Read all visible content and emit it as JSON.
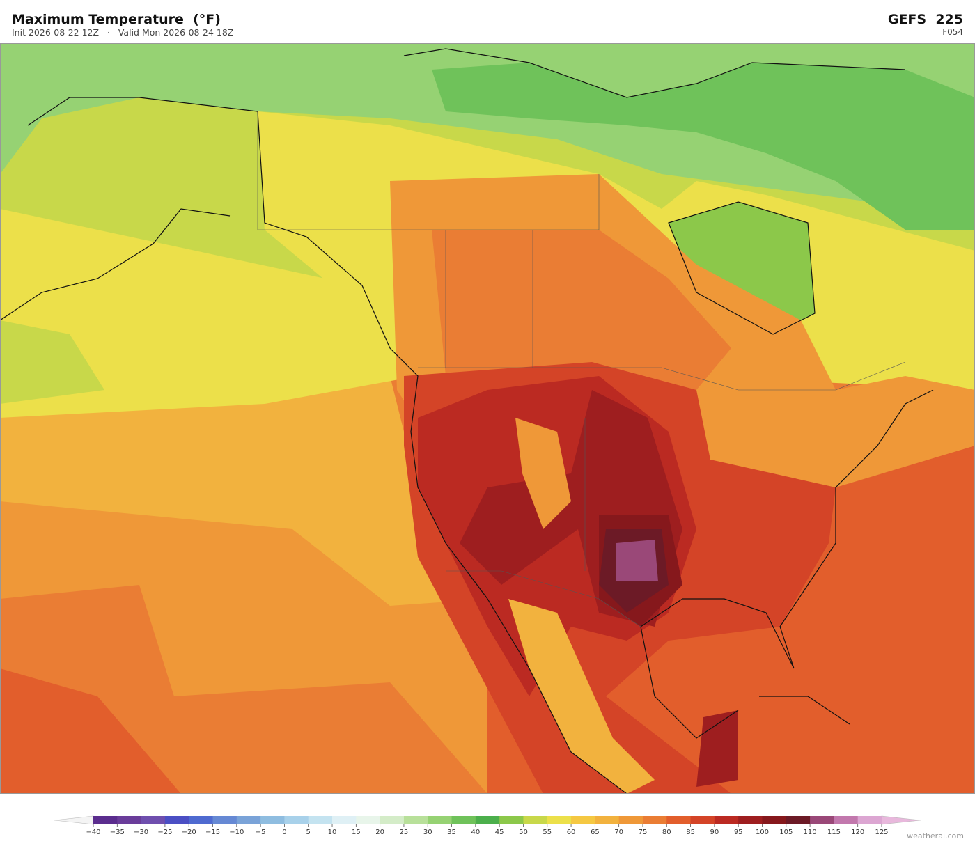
{
  "header": {
    "title": "Maximum Temperature  (°F)",
    "subtitle": "Init 2026-08-22 12Z   ·   Valid Mon 2026-08-24 18Z",
    "model": "GEFS  225",
    "forecast_hour": "F054"
  },
  "colorbar": {
    "ticks": [
      {
        "value": -40,
        "label": "−40"
      },
      {
        "value": -35,
        "label": "−35"
      },
      {
        "value": -30,
        "label": "−30"
      },
      {
        "value": -25,
        "label": "−25"
      },
      {
        "value": -20,
        "label": "−20"
      },
      {
        "value": -15,
        "label": "−15"
      },
      {
        "value": -10,
        "label": "−10"
      },
      {
        "value": -5,
        "label": "−5"
      },
      0,
      5,
      10,
      15,
      20,
      25,
      30,
      35,
      40,
      45,
      50,
      55,
      60,
      65,
      70,
      75,
      80,
      85,
      90,
      95,
      100,
      105,
      110,
      115,
      120,
      125
    ],
    "colors": [
      "#5b2d8e",
      "#6a3d9a",
      "#6f4fae",
      "#4b4fc4",
      "#4f6ad0",
      "#6689d4",
      "#7aa3d8",
      "#8fbde0",
      "#a8d1ea",
      "#c4e3f0",
      "#dff0f5",
      "#e8f5ea",
      "#d4ecc8",
      "#b8e09a",
      "#96d273",
      "#6fc25a",
      "#4caf4c",
      "#8cc84a",
      "#c8d84a",
      "#ece04a",
      "#f5c842",
      "#f2b23e",
      "#ef9838",
      "#ea7d34",
      "#e25e2c",
      "#d44427",
      "#bb2a22",
      "#9e1e1f",
      "#86181c",
      "#6c1a26",
      "#9a4878",
      "#c278ad",
      "#dca6d2"
    ],
    "under_color": "#f4f4f4",
    "over_color": "#e8b8dc"
  },
  "footer": {
    "credit": "weatherai.com"
  }
}
